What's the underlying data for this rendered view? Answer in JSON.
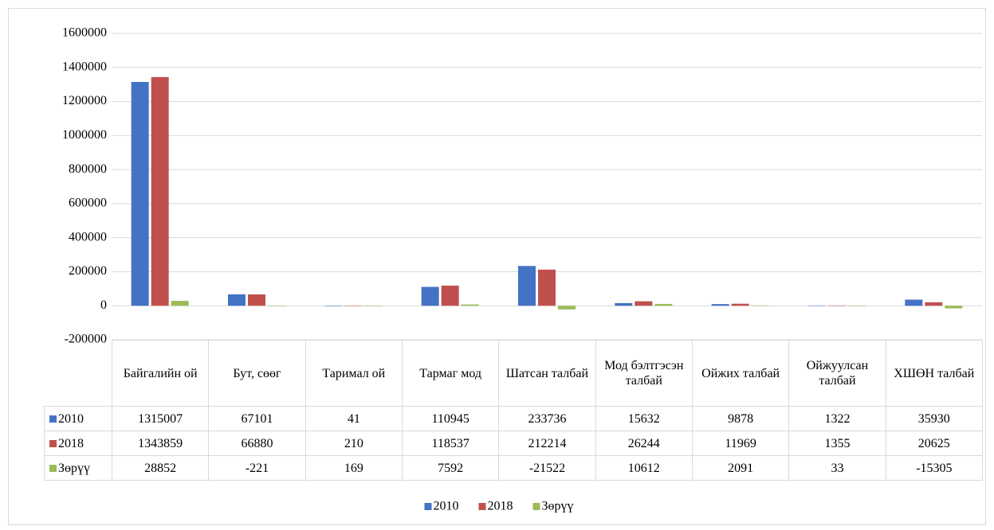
{
  "chart_data": {
    "type": "bar",
    "categories": [
      "Байгалийн ой",
      "Бут, сөөг",
      "Таримал ой",
      "Тармаг мод",
      "Шатсан талбай",
      "Мод бэлтгэсэн талбай",
      "Ойжих талбай",
      "Ойжуулсан талбай",
      "ХШӨН талбай"
    ],
    "series": [
      {
        "name": "2010",
        "color": "#4472c4",
        "values": [
          1315007,
          67101,
          41,
          110945,
          233736,
          15632,
          9878,
          1322,
          35930
        ]
      },
      {
        "name": "2018",
        "color": "#c0504d",
        "values": [
          1343859,
          66880,
          210,
          118537,
          212214,
          26244,
          11969,
          1355,
          20625
        ]
      },
      {
        "name": "Зөрүү",
        "color": "#9bbb59",
        "values": [
          28852,
          -221,
          169,
          7592,
          -21522,
          10612,
          2091,
          33,
          -15305
        ]
      }
    ],
    "ylim": [
      -200000,
      1600000
    ],
    "yticks": [
      -200000,
      0,
      200000,
      400000,
      600000,
      800000,
      1000000,
      1200000,
      1400000,
      1600000
    ],
    "grid": true,
    "legend": "bottom"
  }
}
